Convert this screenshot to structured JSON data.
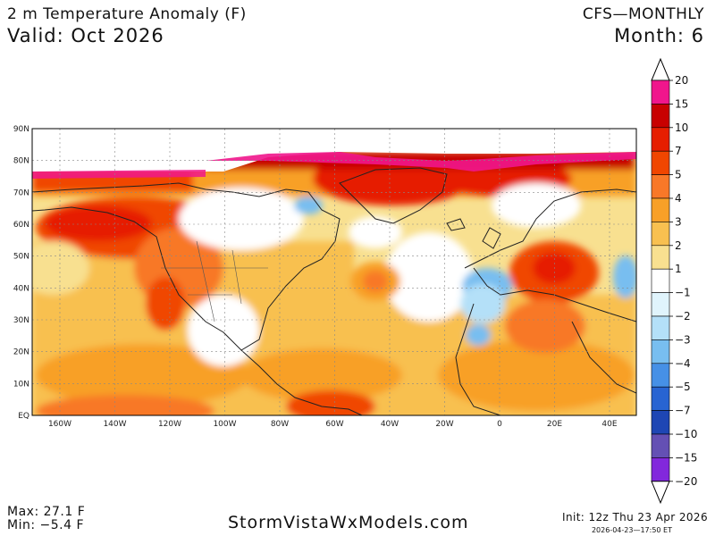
{
  "header": {
    "title": "2 m Temperature Anomaly (F)",
    "valid": "Valid: Oct 2026",
    "model": "CFS—MONTHLY",
    "month": "Month: 6"
  },
  "map": {
    "lat_labels": [
      "90N",
      "80N",
      "70N",
      "60N",
      "50N",
      "40N",
      "30N",
      "20N",
      "10N",
      "EQ"
    ],
    "lon_labels": [
      "160W",
      "140W",
      "120W",
      "100W",
      "80W",
      "60W",
      "40W",
      "20W",
      "0",
      "20E",
      "40E"
    ]
  },
  "legend": {
    "labels": [
      "20",
      "15",
      "10",
      "7",
      "5",
      "4",
      "3",
      "2",
      "1",
      "−1",
      "−2",
      "−3",
      "−4",
      "−5",
      "−7",
      "−10",
      "−15",
      "−20"
    ],
    "colors": [
      "#f0168c",
      "#c80000",
      "#e61e00",
      "#f04600",
      "#f87828",
      "#f8a028",
      "#f8c050",
      "#f8e090",
      "#ffffff",
      "#e0f4fc",
      "#b4e0f8",
      "#78bef0",
      "#4690e6",
      "#2864d2",
      "#1e46b4",
      "#6450b4",
      "#8228dc"
    ]
  },
  "footer": {
    "max": "Max: 27.1 F",
    "min": "Min: −5.4 F",
    "credit": "StormVistaWxModels.com",
    "init": "Init: 12z Thu 23 Apr 2026",
    "timestamp": "2026-04-23—17:50 ET"
  }
}
